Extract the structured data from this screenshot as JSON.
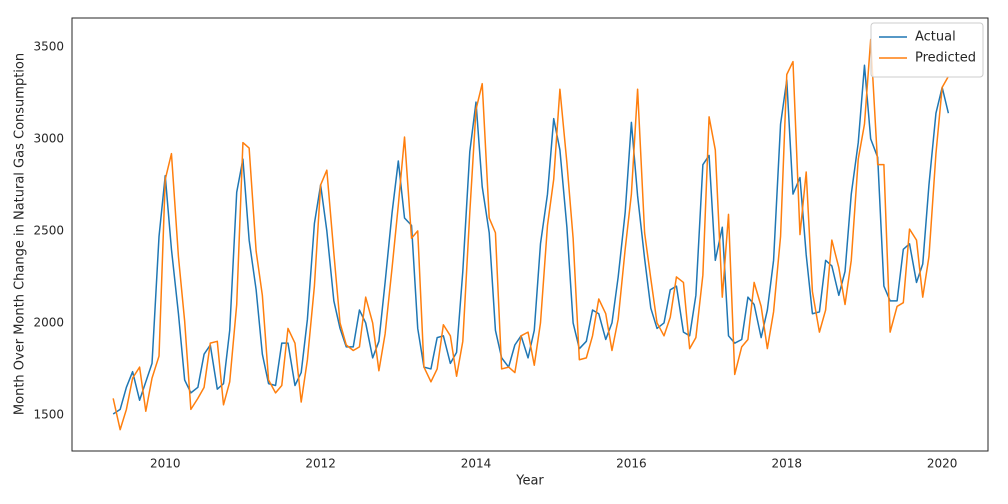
{
  "chart_data": {
    "type": "line",
    "xlabel": "Year",
    "ylabel": "Month Over Month Change in Natural Gas Consumption",
    "x": [
      2009.33,
      2009.42,
      2009.5,
      2009.58,
      2009.67,
      2009.75,
      2009.83,
      2009.92,
      2010.0,
      2010.08,
      2010.17,
      2010.25,
      2010.33,
      2010.42,
      2010.5,
      2010.58,
      2010.67,
      2010.75,
      2010.83,
      2010.92,
      2011.0,
      2011.08,
      2011.17,
      2011.25,
      2011.33,
      2011.42,
      2011.5,
      2011.58,
      2011.67,
      2011.75,
      2011.83,
      2011.92,
      2012.0,
      2012.08,
      2012.17,
      2012.25,
      2012.33,
      2012.42,
      2012.5,
      2012.58,
      2012.67,
      2012.75,
      2012.83,
      2012.92,
      2013.0,
      2013.08,
      2013.17,
      2013.25,
      2013.33,
      2013.42,
      2013.5,
      2013.58,
      2013.67,
      2013.75,
      2013.83,
      2013.92,
      2014.0,
      2014.08,
      2014.17,
      2014.25,
      2014.33,
      2014.42,
      2014.5,
      2014.58,
      2014.67,
      2014.75,
      2014.83,
      2014.92,
      2015.0,
      2015.08,
      2015.17,
      2015.25,
      2015.33,
      2015.42,
      2015.5,
      2015.58,
      2015.67,
      2015.75,
      2015.83,
      2015.92,
      2016.0,
      2016.08,
      2016.17,
      2016.25,
      2016.33,
      2016.42,
      2016.5,
      2016.58,
      2016.67,
      2016.75,
      2016.83,
      2016.92,
      2017.0,
      2017.08,
      2017.17,
      2017.25,
      2017.33,
      2017.42,
      2017.5,
      2017.58,
      2017.67,
      2017.75,
      2017.83,
      2017.92,
      2018.0,
      2018.08,
      2018.17,
      2018.25,
      2018.33,
      2018.42,
      2018.5,
      2018.58,
      2018.67,
      2018.75,
      2018.83,
      2018.92,
      2019.0,
      2019.08,
      2019.17,
      2019.25,
      2019.33,
      2019.42,
      2019.5,
      2019.58,
      2019.67,
      2019.75,
      2019.83,
      2019.92,
      2020.0,
      2020.08
    ],
    "series": [
      {
        "name": "Actual",
        "color": "#1f77b4",
        "values": [
          1505,
          1530,
          1650,
          1735,
          1580,
          1680,
          1780,
          2470,
          2800,
          2400,
          2050,
          1690,
          1620,
          1650,
          1830,
          1880,
          1640,
          1670,
          1960,
          2710,
          2890,
          2450,
          2180,
          1830,
          1670,
          1660,
          1890,
          1890,
          1660,
          1730,
          2020,
          2540,
          2750,
          2500,
          2120,
          1970,
          1870,
          1870,
          2070,
          2000,
          1810,
          1900,
          2220,
          2600,
          2880,
          2570,
          2530,
          1970,
          1760,
          1750,
          1920,
          1930,
          1780,
          1840,
          2280,
          2930,
          3200,
          2740,
          2490,
          1960,
          1810,
          1760,
          1880,
          1930,
          1810,
          1960,
          2430,
          2700,
          3110,
          2940,
          2520,
          2000,
          1860,
          1900,
          2070,
          2050,
          1910,
          2000,
          2250,
          2600,
          3090,
          2690,
          2350,
          2080,
          1970,
          2000,
          2180,
          2200,
          1950,
          1930,
          2150,
          2860,
          2910,
          2340,
          2520,
          1930,
          1890,
          1910,
          2140,
          2100,
          1920,
          2070,
          2340,
          3080,
          3320,
          2700,
          2790,
          2370,
          2050,
          2060,
          2340,
          2310,
          2150,
          2280,
          2700,
          2980,
          3400,
          3000,
          2900,
          2200,
          2120,
          2120,
          2400,
          2430,
          2220,
          2320,
          2750,
          3140,
          3280,
          3140
        ]
      },
      {
        "name": "Predicted",
        "color": "#ff7f0e",
        "values": [
          1590,
          1420,
          1530,
          1700,
          1760,
          1520,
          1700,
          1820,
          2780,
          2920,
          2360,
          2010,
          1530,
          1590,
          1650,
          1890,
          1900,
          1555,
          1680,
          2100,
          2980,
          2950,
          2390,
          2150,
          1690,
          1620,
          1660,
          1970,
          1890,
          1570,
          1800,
          2200,
          2750,
          2830,
          2380,
          2000,
          1880,
          1850,
          1870,
          2140,
          2000,
          1740,
          1940,
          2300,
          2640,
          3010,
          2460,
          2500,
          1760,
          1680,
          1750,
          1990,
          1930,
          1710,
          1900,
          2600,
          3160,
          3300,
          2570,
          2490,
          1750,
          1760,
          1730,
          1930,
          1950,
          1770,
          2000,
          2530,
          2780,
          3270,
          2870,
          2460,
          1800,
          1810,
          1930,
          2130,
          2050,
          1850,
          2020,
          2400,
          2700,
          3270,
          2490,
          2240,
          2000,
          1930,
          2030,
          2250,
          2220,
          1860,
          1920,
          2260,
          3120,
          2940,
          2140,
          2590,
          1720,
          1870,
          1910,
          2220,
          2090,
          1860,
          2060,
          2470,
          3350,
          3420,
          2480,
          2820,
          2170,
          1950,
          2070,
          2450,
          2300,
          2100,
          2340,
          2890,
          3080,
          3540,
          2860,
          2860,
          1950,
          2090,
          2110,
          2510,
          2450,
          2140,
          2360,
          2920,
          3280,
          3340
        ]
      }
    ],
    "xlim": [
      2008.8,
      2020.59
    ],
    "xticks": [
      2010,
      2012,
      2014,
      2016,
      2018,
      2020
    ],
    "ylim": [
      1304,
      3657
    ],
    "yticks": [
      1500,
      2000,
      2500,
      3000,
      3500
    ],
    "grid": false,
    "legend": "upper right"
  }
}
